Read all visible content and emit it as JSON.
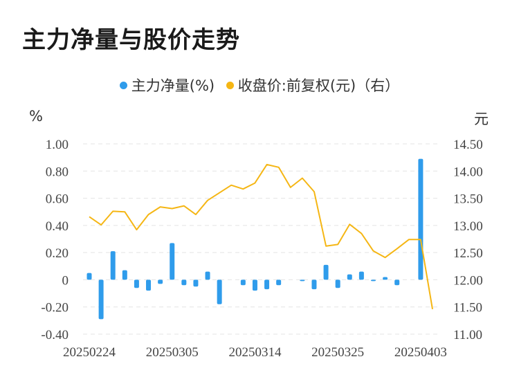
{
  "page_title": "主力净量与股价走势",
  "colors": {
    "bar": "#2f9ceb",
    "line": "#f5b614",
    "grid": "#e3e3e3"
  },
  "chart_data": {
    "type": "bar+line",
    "legend": [
      {
        "label": "主力净量(%)",
        "color": "#2f9ceb",
        "icon": "circle-icon"
      },
      {
        "label": "收盘价:前复权(元)（右）",
        "color": "#f5b614",
        "icon": "circle-icon"
      }
    ],
    "left_unit": "%",
    "right_unit": "元",
    "y_left": {
      "min": -0.4,
      "max": 1.0,
      "ticks": [
        1.0,
        0.8,
        0.6,
        0.4,
        0.2,
        0,
        -0.2,
        -0.4
      ],
      "tick_labels": [
        "1.00",
        "0.80",
        "0.60",
        "0.40",
        "0.20",
        "0",
        "-0.20",
        "-0.40"
      ]
    },
    "y_right": {
      "min": 11.0,
      "max": 14.5,
      "ticks": [
        14.5,
        14.0,
        13.5,
        13.0,
        12.5,
        12.0,
        11.5,
        11.0
      ],
      "tick_labels": [
        "14.50",
        "14.00",
        "13.50",
        "13.00",
        "12.50",
        "12.00",
        "11.50",
        "11.00"
      ]
    },
    "x_tick_labels": [
      {
        "index": 0,
        "label": "20250224"
      },
      {
        "index": 7,
        "label": "20250305"
      },
      {
        "index": 14,
        "label": "20250314"
      },
      {
        "index": 21,
        "label": "20250325"
      },
      {
        "index": 28,
        "label": "20250403"
      }
    ],
    "series": [
      {
        "name": "主力净量(%)",
        "type": "bar",
        "values": [
          0.05,
          -0.29,
          0.21,
          0.07,
          -0.06,
          -0.08,
          -0.03,
          0.27,
          -0.04,
          -0.05,
          0.06,
          -0.18,
          0.0,
          -0.04,
          -0.08,
          -0.07,
          -0.04,
          0.0,
          -0.01,
          -0.07,
          0.11,
          -0.06,
          0.04,
          0.06,
          -0.01,
          0.02,
          -0.04,
          0.0,
          0.89
        ]
      },
      {
        "name": "收盘价:前复权(元)（右）",
        "type": "line",
        "values": [
          13.16,
          13.01,
          13.26,
          13.25,
          12.92,
          13.2,
          13.34,
          13.31,
          13.36,
          13.2,
          13.46,
          13.6,
          13.74,
          13.67,
          13.78,
          14.12,
          14.07,
          13.7,
          13.87,
          13.62,
          12.62,
          12.65,
          13.02,
          12.85,
          12.53,
          12.41,
          12.57,
          12.74,
          12.74,
          11.46
        ]
      }
    ]
  }
}
